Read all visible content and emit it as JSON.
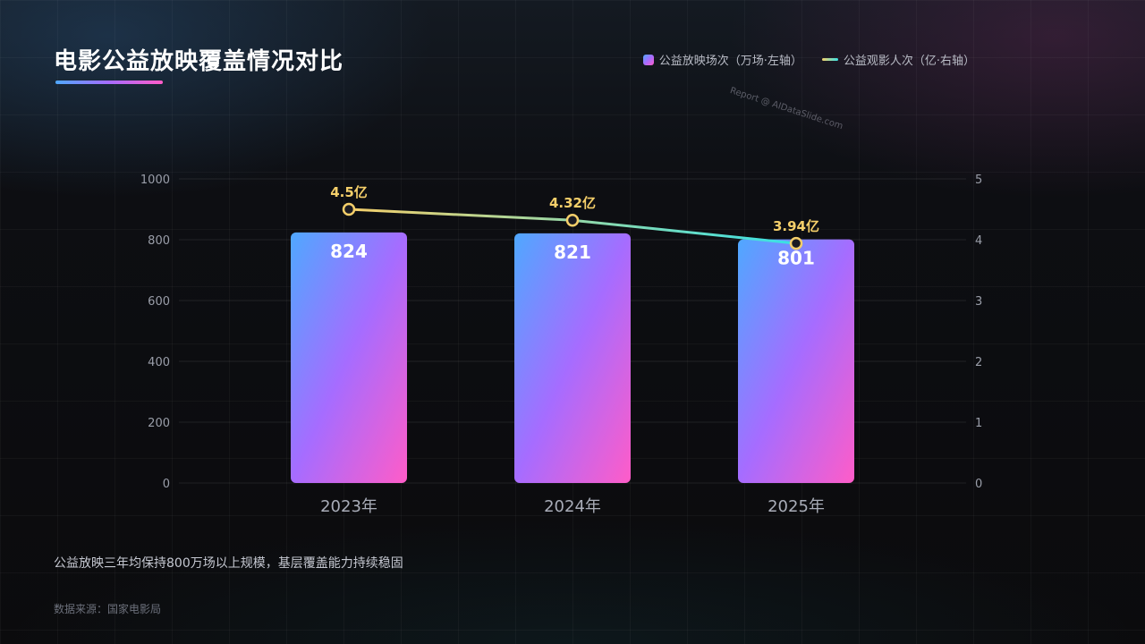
{
  "title": "电影公益放映覆盖情况对比",
  "legend": {
    "bar_label": "公益放映场次（万场·左轴）",
    "line_label": "公益观影人次（亿·右轴）"
  },
  "watermark": "Report @ AIDataSlide.com",
  "note": "公益放映三年均保持800万场以上规模，基层覆盖能力持续稳固",
  "source": "数据来源：国家电影局",
  "colors": {
    "bar_start": "#4fa8ff",
    "bar_mid": "#a66cff",
    "bar_end": "#ff5cc8",
    "line_start": "#f5cf6a",
    "line_end": "#37e1e6",
    "point_label": "#f5cf6a"
  },
  "chart_data": {
    "type": "bar",
    "categories": [
      "2023年",
      "2024年",
      "2025年"
    ],
    "series": [
      {
        "name": "公益放映场次（万场·左轴）",
        "type": "bar",
        "axis": "left",
        "values": [
          824,
          821,
          801
        ],
        "labels": [
          "824",
          "821",
          "801"
        ]
      },
      {
        "name": "公益观影人次（亿·右轴）",
        "type": "line",
        "axis": "right",
        "values": [
          4.5,
          4.32,
          3.94
        ],
        "labels": [
          "4.5亿",
          "4.32亿",
          "3.94亿"
        ]
      }
    ],
    "y_left": {
      "min": 0,
      "max": 1000,
      "ticks": [
        "0",
        "200",
        "400",
        "600",
        "800",
        "1000"
      ]
    },
    "y_right": {
      "min": 0,
      "max": 5,
      "ticks": [
        "0",
        "1",
        "2",
        "3",
        "4",
        "5"
      ]
    },
    "grid": true,
    "legend_position": "top-right"
  }
}
